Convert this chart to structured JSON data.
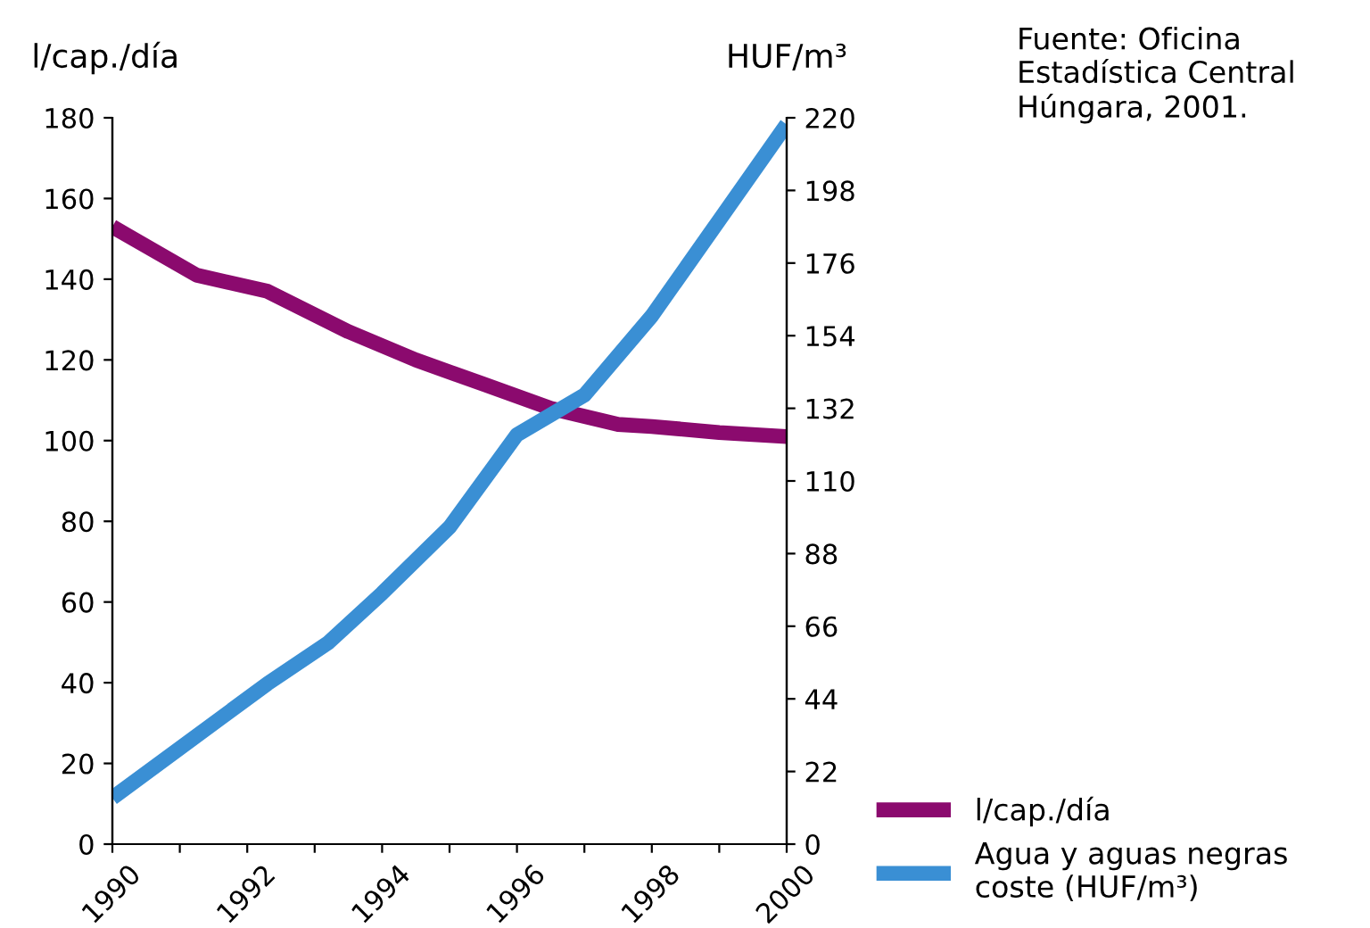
{
  "chart_data": {
    "type": "line",
    "ylabel": "l/cap./día",
    "y2label": "HUF/m³",
    "annotations": [
      "Fuente: Oficina\nEstadística Central\nHúngara, 2001."
    ],
    "series": [
      {
        "name": "l/cap./día",
        "color": "#8b0a6e",
        "x": [
          1990,
          1991.25,
          1992.3,
          1993.5,
          1994.5,
          1995.5,
          1996.5,
          1997.5,
          1998,
          1999,
          2000
        ],
        "values": [
          153,
          141,
          137,
          127,
          120,
          114,
          108,
          104,
          103.5,
          102,
          101
        ]
      },
      {
        "name": "Agua y aguas negras\ncoste (HUF/m³)",
        "color": "#3a8fd4",
        "axis": "y2",
        "x": [
          1990,
          1992.3,
          1993.2,
          1994,
          1995,
          1996,
          1997,
          1998,
          1999,
          2000
        ],
        "values": [
          14,
          48.6,
          61,
          76,
          96,
          124,
          136,
          160,
          189,
          218
        ]
      }
    ],
    "xlim": [
      1990,
      2000
    ],
    "xticks": [
      1990,
      {
        "value": 1991,
        "label": null
      },
      1992,
      {
        "value": 1993,
        "label": null
      },
      1994,
      {
        "value": 1995,
        "label": null
      },
      1996,
      {
        "value": 1997,
        "label": null
      },
      1998,
      {
        "value": 1999,
        "label": null
      },
      2000
    ],
    "ylim": [
      0,
      180
    ],
    "yticks": [
      0,
      20,
      40,
      60,
      80,
      100,
      120,
      140,
      160,
      180
    ],
    "y2lim": [
      0,
      220
    ],
    "y2ticks": [
      0,
      22,
      44,
      66,
      88,
      110,
      132,
      154,
      176,
      198,
      220
    ],
    "grid": false,
    "legend": "bottom right",
    "line_style": "solid",
    "marker": "none"
  }
}
